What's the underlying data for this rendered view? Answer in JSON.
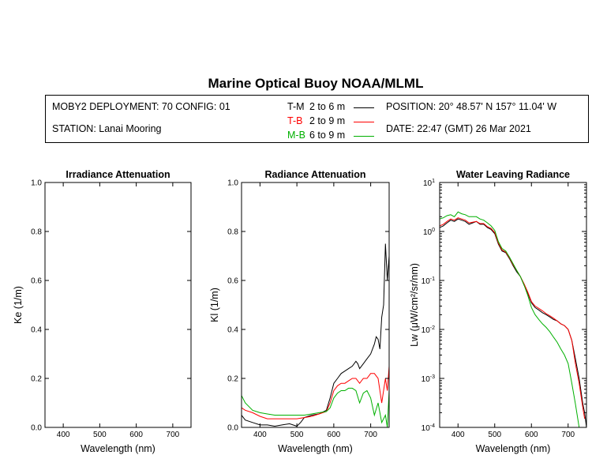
{
  "header": {
    "title": "Marine Optical Buoy NOAA/MLML",
    "deployment": "MOBY2 DEPLOYMENT: 70 CONFIG: 01",
    "station": "STATION: Lanai Mooring",
    "position": "POSITION: 20° 48.57' N   157° 11.04' W",
    "date": "DATE: 22:47 (GMT) 26 Mar 2021",
    "legend": [
      {
        "code": "T-M",
        "range": "2 to 6  m",
        "color": "#000000"
      },
      {
        "code": "T-B",
        "range": "2 to 9  m",
        "color": "#ff0000"
      },
      {
        "code": "M-B",
        "range": "6 to 9  m",
        "color": "#00b000"
      }
    ]
  },
  "chart_data": [
    {
      "type": "line",
      "title": "Irradiance Attenuation",
      "xlabel": "Wavelength (nm)",
      "ylabel": "Ke  (1/m)",
      "xlim": [
        350,
        750
      ],
      "ylim": [
        0,
        1
      ],
      "xticks": [
        400,
        500,
        600,
        700
      ],
      "yticks": [
        "0.0",
        "0.2",
        "0.4",
        "0.6",
        "0.8",
        "1.0"
      ],
      "series": []
    },
    {
      "type": "line",
      "title": "Radiance Attenuation",
      "xlabel": "Wavelength (nm)",
      "ylabel": "Kl  (1/m)",
      "xlim": [
        350,
        750
      ],
      "ylim": [
        0,
        1
      ],
      "xticks": [
        400,
        500,
        600,
        700
      ],
      "yticks": [
        "0.0",
        "0.2",
        "0.4",
        "0.6",
        "0.8",
        "1.0"
      ],
      "series": [
        {
          "code": "T-M",
          "color": "#000000",
          "x": [
            350,
            360,
            380,
            400,
            420,
            440,
            460,
            480,
            500,
            510,
            520,
            540,
            560,
            580,
            590,
            600,
            610,
            620,
            630,
            640,
            650,
            660,
            665,
            670,
            680,
            690,
            700,
            710,
            715,
            720,
            725,
            730,
            735,
            740,
            745,
            750
          ],
          "y": [
            0.05,
            0.03,
            0.02,
            0.01,
            0.01,
            0.005,
            0.01,
            0.015,
            0.005,
            0.02,
            0.04,
            0.05,
            0.055,
            0.07,
            0.12,
            0.18,
            0.2,
            0.22,
            0.23,
            0.24,
            0.25,
            0.27,
            0.26,
            0.24,
            0.26,
            0.28,
            0.3,
            0.34,
            0.37,
            0.36,
            0.32,
            0.45,
            0.5,
            0.75,
            0.6,
            0.7
          ]
        },
        {
          "code": "T-B",
          "color": "#ff0000",
          "x": [
            350,
            360,
            380,
            400,
            420,
            440,
            460,
            480,
            500,
            520,
            540,
            560,
            580,
            590,
            600,
            610,
            620,
            630,
            640,
            650,
            660,
            670,
            680,
            690,
            700,
            710,
            720,
            730,
            740,
            745,
            750
          ],
          "y": [
            0.08,
            0.07,
            0.06,
            0.045,
            0.035,
            0.035,
            0.035,
            0.035,
            0.035,
            0.04,
            0.045,
            0.055,
            0.065,
            0.1,
            0.15,
            0.17,
            0.18,
            0.18,
            0.19,
            0.2,
            0.2,
            0.18,
            0.2,
            0.2,
            0.22,
            0.22,
            0.2,
            0.1,
            0.2,
            0.15,
            0.25
          ]
        },
        {
          "code": "M-B",
          "color": "#00b000",
          "x": [
            350,
            360,
            380,
            400,
            420,
            440,
            460,
            480,
            500,
            520,
            540,
            560,
            580,
            590,
            600,
            610,
            620,
            630,
            640,
            650,
            660,
            670,
            680,
            690,
            700,
            710,
            720,
            730,
            740,
            745,
            750
          ],
          "y": [
            0.13,
            0.1,
            0.07,
            0.06,
            0.055,
            0.05,
            0.05,
            0.05,
            0.05,
            0.05,
            0.055,
            0.06,
            0.065,
            0.08,
            0.12,
            0.14,
            0.15,
            0.15,
            0.16,
            0.16,
            0.15,
            0.1,
            0.14,
            0.15,
            0.12,
            0.05,
            0.1,
            0.02,
            0.05,
            0.0,
            0.15
          ]
        }
      ]
    },
    {
      "type": "line",
      "title": "Water Leaving Radiance",
      "xlabel": "Wavelength (nm)",
      "ylabel": "Lw  (μW/cm²/sr/nm)",
      "xlim": [
        350,
        750
      ],
      "ylim": [
        0.0001,
        10
      ],
      "yscale": "log",
      "xticks": [
        400,
        500,
        600,
        700
      ],
      "yticks": [
        {
          "base": "10",
          "exp": "1",
          "v": 10
        },
        {
          "base": "10",
          "exp": "0",
          "v": 1
        },
        {
          "base": "10",
          "exp": "-1",
          "v": 0.1
        },
        {
          "base": "10",
          "exp": "-2",
          "v": 0.01
        },
        {
          "base": "10",
          "exp": "-3",
          "v": 0.001
        },
        {
          "base": "10",
          "exp": "-4",
          "v": 0.0001
        }
      ],
      "series": [
        {
          "code": "T-M",
          "color": "#000000",
          "x": [
            350,
            360,
            370,
            380,
            390,
            400,
            410,
            420,
            430,
            440,
            450,
            460,
            470,
            480,
            490,
            500,
            510,
            520,
            530,
            540,
            550,
            560,
            570,
            580,
            590,
            600,
            610,
            620,
            630,
            640,
            650,
            660,
            670,
            680,
            690,
            700,
            710,
            720,
            730,
            740,
            745,
            750
          ],
          "y": [
            1.2,
            1.3,
            1.5,
            1.7,
            1.6,
            1.8,
            1.7,
            1.6,
            1.4,
            1.5,
            1.6,
            1.4,
            1.4,
            1.2,
            1.1,
            0.9,
            0.55,
            0.4,
            0.37,
            0.28,
            0.2,
            0.15,
            0.12,
            0.08,
            0.055,
            0.035,
            0.028,
            0.025,
            0.022,
            0.02,
            0.018,
            0.016,
            0.015,
            0.013,
            0.012,
            0.01,
            0.006,
            0.0025,
            0.001,
            0.0003,
            0.0002,
            0.0001
          ]
        },
        {
          "code": "T-B",
          "color": "#ff0000",
          "x": [
            350,
            360,
            370,
            380,
            390,
            400,
            410,
            420,
            430,
            440,
            450,
            460,
            470,
            480,
            490,
            500,
            510,
            520,
            530,
            540,
            550,
            560,
            570,
            580,
            590,
            600,
            610,
            620,
            630,
            640,
            650,
            660,
            670,
            680,
            690,
            700,
            710,
            720,
            730,
            740,
            745
          ],
          "y": [
            1.3,
            1.4,
            1.6,
            1.8,
            1.7,
            1.9,
            1.8,
            1.7,
            1.5,
            1.55,
            1.6,
            1.45,
            1.45,
            1.25,
            1.15,
            0.95,
            0.58,
            0.42,
            0.38,
            0.29,
            0.21,
            0.16,
            0.12,
            0.085,
            0.058,
            0.037,
            0.03,
            0.027,
            0.024,
            0.021,
            0.019,
            0.017,
            0.015,
            0.013,
            0.012,
            0.01,
            0.006,
            0.002,
            0.0008,
            0.00025,
            0.00015
          ]
        },
        {
          "code": "M-B",
          "color": "#00b000",
          "x": [
            350,
            360,
            370,
            380,
            390,
            400,
            410,
            420,
            430,
            440,
            450,
            460,
            470,
            480,
            490,
            500,
            510,
            520,
            530,
            540,
            550,
            560,
            570,
            580,
            590,
            600,
            610,
            620,
            630,
            640,
            650,
            660,
            670,
            680,
            690,
            700,
            710,
            720,
            730,
            740
          ],
          "y": [
            1.8,
            1.9,
            2.1,
            2.2,
            2.0,
            2.5,
            2.3,
            2.2,
            2.0,
            2.0,
            2.0,
            1.8,
            1.7,
            1.5,
            1.3,
            1.05,
            0.62,
            0.45,
            0.4,
            0.3,
            0.22,
            0.16,
            0.12,
            0.08,
            0.05,
            0.028,
            0.02,
            0.016,
            0.013,
            0.011,
            0.009,
            0.007,
            0.0055,
            0.004,
            0.003,
            0.002,
            0.0008,
            0.0003,
            0.0001,
            0.0001
          ]
        }
      ]
    }
  ]
}
